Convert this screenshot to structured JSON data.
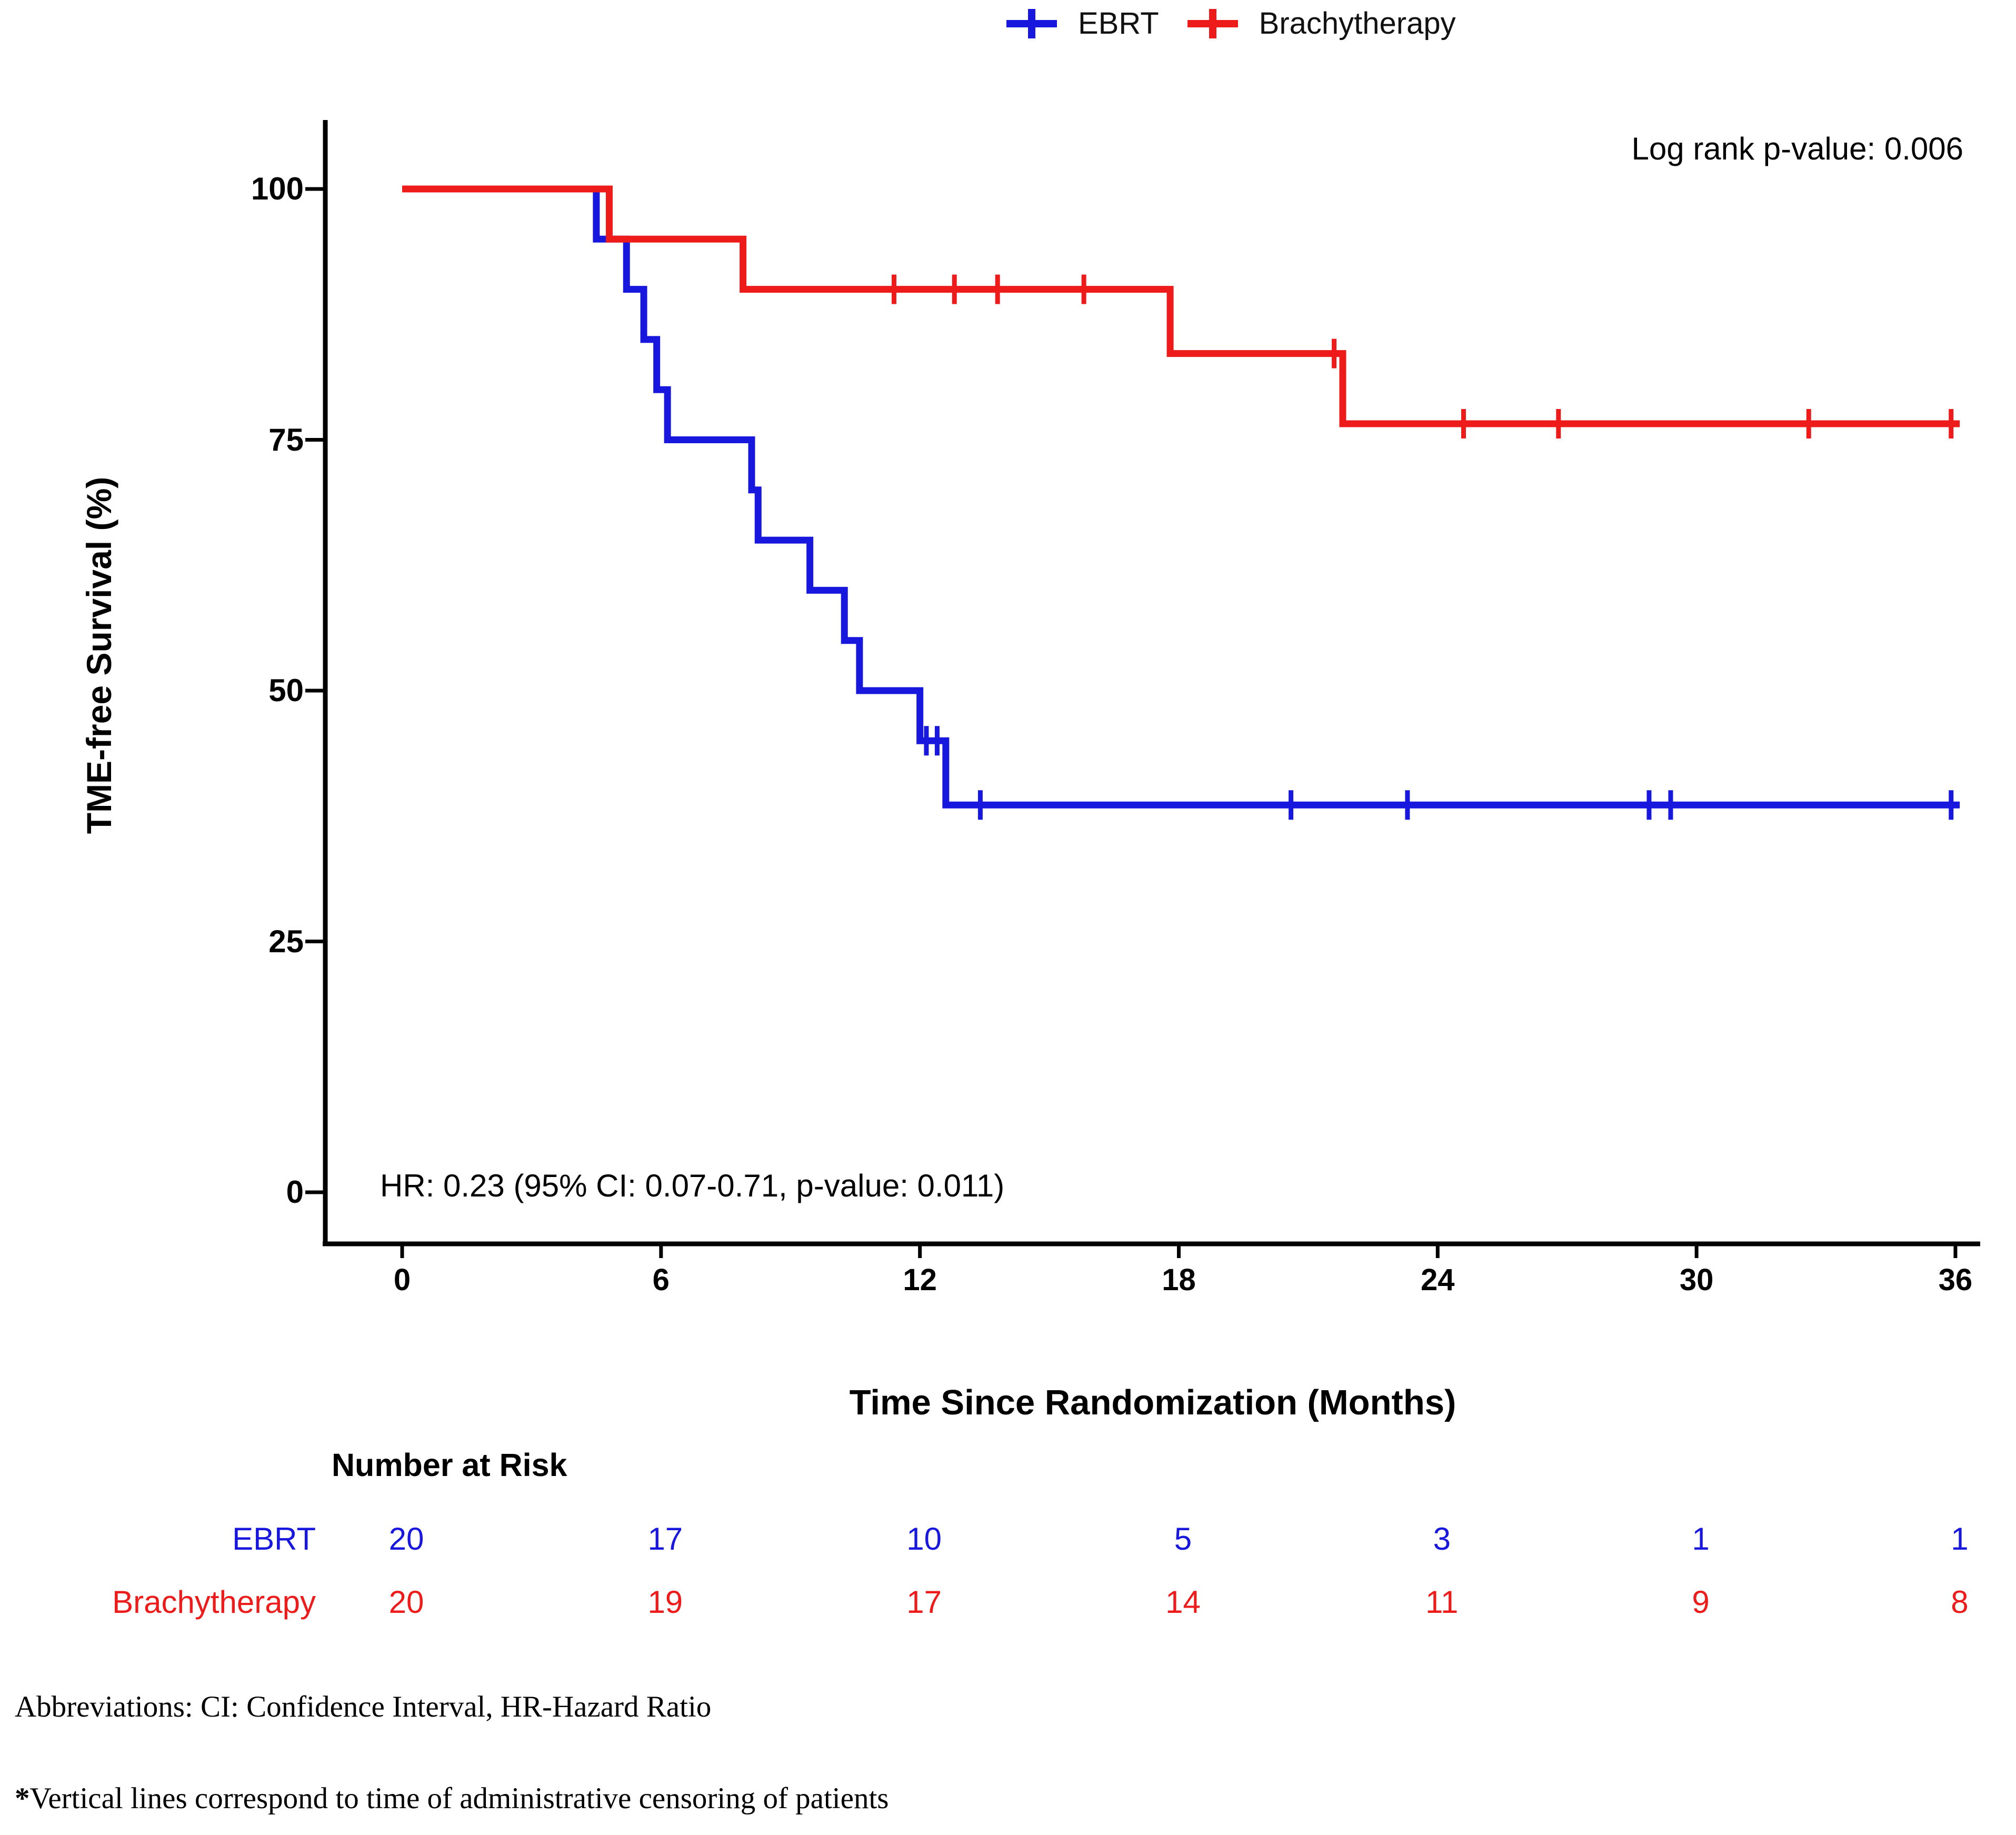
{
  "legend": {
    "items": [
      {
        "label": "EBRT",
        "color": "#1717DD"
      },
      {
        "label": "Brachytherapy",
        "color": "#EE1B1B"
      }
    ]
  },
  "annotations": {
    "log_rank": "Log rank p-value: 0.006",
    "hazard_ratio": "HR: 0.23 (95% CI: 0.07-0.71, p-value: 0.011)"
  },
  "chart_data": {
    "type": "line",
    "subtype": "kaplan-meier-step",
    "title": "",
    "xlabel": "Time Since Randomization (Months)",
    "ylabel": "TME-free Survival (%)",
    "xlim": [
      0,
      36
    ],
    "ylim": [
      0,
      100
    ],
    "x_ticks": [
      0,
      6,
      12,
      18,
      24,
      30,
      36
    ],
    "y_ticks": [
      0,
      25,
      50,
      75,
      100
    ],
    "grid": false,
    "legend_position": "top-center",
    "series": [
      {
        "name": "EBRT",
        "color": "#1717DD",
        "steps": [
          [
            0,
            100
          ],
          [
            4.5,
            95
          ],
          [
            5.2,
            90
          ],
          [
            5.6,
            85
          ],
          [
            5.9,
            80
          ],
          [
            6.15,
            75
          ],
          [
            8.1,
            70
          ],
          [
            8.25,
            65
          ],
          [
            9.45,
            60
          ],
          [
            10.25,
            55
          ],
          [
            10.6,
            50
          ],
          [
            12.0,
            45
          ],
          [
            12.6,
            38.6
          ],
          [
            36.1,
            38.6
          ]
        ],
        "censor_marks": [
          [
            12.15,
            45
          ],
          [
            12.4,
            45
          ],
          [
            13.4,
            38.6
          ],
          [
            20.6,
            38.6
          ],
          [
            23.3,
            38.6
          ],
          [
            28.9,
            38.6
          ],
          [
            29.4,
            38.6
          ],
          [
            35.9,
            38.6
          ]
        ]
      },
      {
        "name": "Brachytherapy",
        "color": "#EE1B1B",
        "steps": [
          [
            0,
            100
          ],
          [
            4.8,
            95
          ],
          [
            7.9,
            90
          ],
          [
            17.8,
            83.6
          ],
          [
            21.8,
            76.6
          ],
          [
            36.1,
            76.6
          ]
        ],
        "censor_marks": [
          [
            11.4,
            90
          ],
          [
            12.8,
            90
          ],
          [
            13.8,
            90
          ],
          [
            15.8,
            90
          ],
          [
            21.6,
            83.6
          ],
          [
            24.6,
            76.6
          ],
          [
            26.8,
            76.6
          ],
          [
            32.6,
            76.6
          ],
          [
            35.9,
            76.6
          ]
        ]
      }
    ],
    "risk_table": {
      "header": "Number at Risk",
      "time_points": [
        0,
        6,
        12,
        18,
        24,
        30,
        36
      ],
      "rows": [
        {
          "label": "EBRT",
          "color": "#1717DD",
          "values": [
            20,
            17,
            10,
            5,
            3,
            1,
            1
          ]
        },
        {
          "label": "Brachytherapy",
          "color": "#EE1B1B",
          "values": [
            20,
            19,
            17,
            14,
            11,
            9,
            8
          ]
        }
      ]
    }
  },
  "footnotes": {
    "line1": "Abbreviations: CI: Confidence Interval, HR-Hazard Ratio",
    "line2_star": "*",
    "line2": "Vertical lines correspond to time of administrative censoring of patients"
  }
}
